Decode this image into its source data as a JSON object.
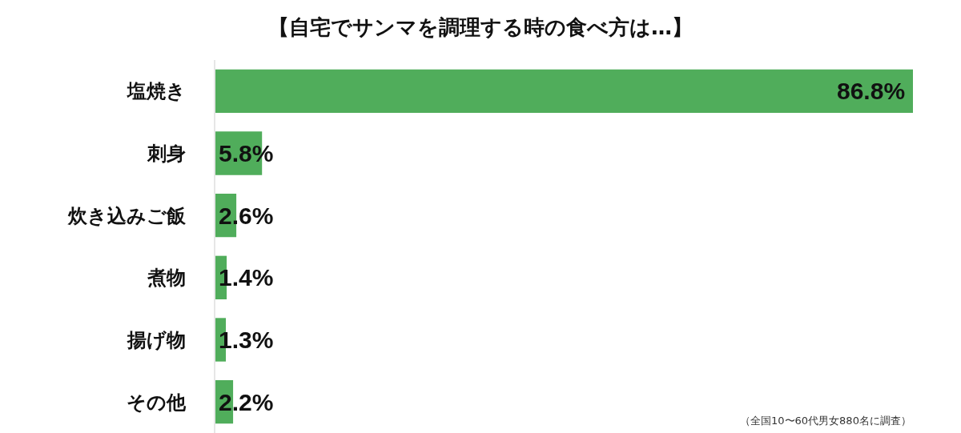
{
  "chart_data": {
    "type": "bar",
    "orientation": "horizontal",
    "title": "【自宅でサンマを調理する時の食べ方は…】",
    "categories": [
      "塩焼き",
      "刺身",
      "炊き込みご飯",
      "煮物",
      "揚げ物",
      "その他"
    ],
    "values": [
      86.8,
      5.8,
      2.6,
      1.4,
      1.3,
      2.2
    ],
    "value_labels": [
      "86.8%",
      "5.8%",
      "2.6%",
      "1.4%",
      "1.3%",
      "2.2%"
    ],
    "color": "#50ad5b",
    "xlim": [
      0,
      86.8
    ],
    "tick_labels": "y",
    "annotations": [
      "（全国10〜60代男女880名に調査）"
    ]
  }
}
